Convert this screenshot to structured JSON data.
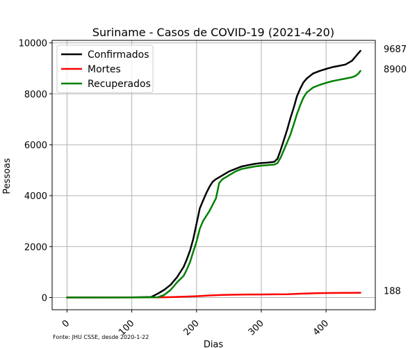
{
  "chart_data": {
    "type": "line",
    "title": "Suriname - Casos de COVID-19 (2021-4-20)",
    "xlabel": "Dias",
    "ylabel": "Pessoas",
    "xlim": [
      -23,
      476
    ],
    "ylim": [
      -480,
      10100
    ],
    "xticks": [
      0,
      100,
      200,
      300,
      400
    ],
    "yticks": [
      0,
      2000,
      4000,
      6000,
      8000,
      10000
    ],
    "grid": true,
    "legend_position": "upper-left",
    "source_note": "Fonte: JHU CSSE, desde 2020-1-22",
    "series": [
      {
        "name": "Confirmados",
        "color": "#000000",
        "end_label": "9687",
        "x": [
          0,
          60,
          100,
          130,
          140,
          150,
          160,
          170,
          180,
          185,
          190,
          195,
          200,
          205,
          210,
          215,
          220,
          225,
          230,
          240,
          250,
          260,
          270,
          280,
          290,
          300,
          310,
          320,
          325,
          330,
          335,
          340,
          345,
          350,
          355,
          360,
          365,
          370,
          375,
          380,
          390,
          400,
          410,
          420,
          430,
          440,
          445,
          450,
          453
        ],
        "y": [
          0,
          0,
          5,
          20,
          150,
          300,
          500,
          800,
          1200,
          1500,
          1850,
          2300,
          2900,
          3500,
          3800,
          4100,
          4350,
          4550,
          4650,
          4800,
          4950,
          5050,
          5150,
          5200,
          5250,
          5280,
          5300,
          5330,
          5450,
          5800,
          6200,
          6600,
          7050,
          7450,
          7900,
          8200,
          8450,
          8600,
          8700,
          8800,
          8900,
          8980,
          9050,
          9100,
          9150,
          9300,
          9450,
          9600,
          9687
        ]
      },
      {
        "name": "Mortes",
        "color": "#ff0000",
        "end_label": "188",
        "x": [
          0,
          140,
          160,
          180,
          200,
          220,
          240,
          260,
          280,
          300,
          320,
          340,
          360,
          380,
          400,
          420,
          440,
          453
        ],
        "y": [
          0,
          5,
          15,
          30,
          50,
          80,
          100,
          110,
          118,
          120,
          125,
          130,
          150,
          165,
          175,
          180,
          185,
          188
        ]
      },
      {
        "name": "Recuperados",
        "color": "#008000",
        "end_label": "8900",
        "x": [
          0,
          100,
          140,
          150,
          155,
          160,
          165,
          170,
          180,
          185,
          190,
          195,
          200,
          205,
          210,
          220,
          230,
          235,
          240,
          245,
          250,
          260,
          270,
          280,
          290,
          300,
          310,
          320,
          325,
          330,
          335,
          340,
          345,
          350,
          355,
          360,
          365,
          370,
          375,
          380,
          390,
          400,
          410,
          420,
          430,
          440,
          445,
          450,
          453
        ],
        "y": [
          0,
          0,
          10,
          100,
          200,
          300,
          450,
          600,
          850,
          1100,
          1400,
          1800,
          2200,
          2700,
          3000,
          3400,
          3900,
          4500,
          4650,
          4720,
          4800,
          4950,
          5050,
          5100,
          5150,
          5180,
          5200,
          5220,
          5280,
          5500,
          5800,
          6100,
          6400,
          6800,
          7200,
          7550,
          7850,
          8050,
          8150,
          8250,
          8350,
          8430,
          8500,
          8550,
          8600,
          8650,
          8700,
          8800,
          8900
        ]
      }
    ]
  }
}
